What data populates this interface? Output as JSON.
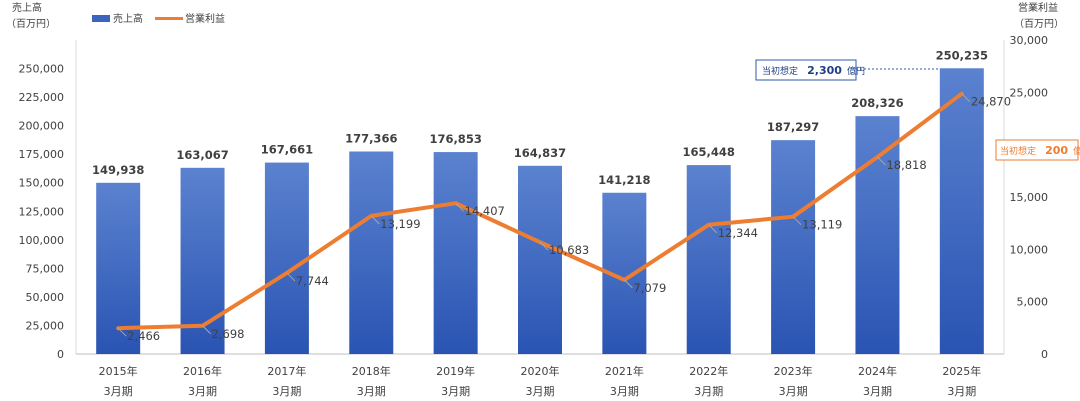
{
  "chart_data": {
    "type": "bar",
    "categories": [
      [
        "2015年",
        "3月期"
      ],
      [
        "2016年",
        "3月期"
      ],
      [
        "2017年",
        "3月期"
      ],
      [
        "2018年",
        "3月期"
      ],
      [
        "2019年",
        "3月期"
      ],
      [
        "2020年",
        "3月期"
      ],
      [
        "2021年",
        "3月期"
      ],
      [
        "2022年",
        "3月期"
      ],
      [
        "2023年",
        "3月期"
      ],
      [
        "2024年",
        "3月期"
      ],
      [
        "2025年",
        "3月期"
      ]
    ],
    "series": [
      {
        "name": "売上高",
        "type": "bar",
        "axis": "left",
        "values": [
          149938,
          163067,
          167661,
          177366,
          176853,
          164837,
          141218,
          165448,
          187297,
          208326,
          250235
        ],
        "labels": [
          "149,938",
          "163,067",
          "167,661",
          "177,366",
          "176,853",
          "164,837",
          "141,218",
          "165,448",
          "187,297",
          "208,326",
          "250,235"
        ]
      },
      {
        "name": "営業利益",
        "type": "line",
        "axis": "right",
        "values": [
          2466,
          2698,
          7744,
          13199,
          14407,
          10683,
          7079,
          12344,
          13119,
          18818,
          24870
        ],
        "labels": [
          "2,466",
          "2,698",
          "7,744",
          "13,199",
          "14,407",
          "10,683",
          "7,079",
          "12,344",
          "13,119",
          "18,818",
          "24,870"
        ]
      }
    ],
    "left_axis": {
      "title_line1": "売上高",
      "title_line2": "（百万円）",
      "min": 0,
      "max": 275000,
      "ticks": [
        0,
        25000,
        50000,
        75000,
        100000,
        125000,
        150000,
        175000,
        200000,
        225000,
        250000
      ],
      "tick_labels": [
        "0",
        "25,000",
        "50,000",
        "75,000",
        "100,000",
        "125,000",
        "150,000",
        "175,000",
        "200,000",
        "225,000",
        "250,000"
      ]
    },
    "right_axis": {
      "title_line1": "営業利益",
      "title_line2": "（百万円）",
      "min": 0,
      "max": 30000,
      "ticks": [
        0,
        5000,
        10000,
        15000,
        20000,
        25000,
        30000
      ],
      "tick_labels": [
        "0",
        "5,000",
        "10,000",
        "15,000",
        "20,000",
        "25,000",
        "30,000"
      ]
    },
    "annotations": [
      {
        "text": "当初想定",
        "value": "2,300",
        "unit": "億円",
        "target_series": "売上高",
        "color": "#2E5AAC"
      },
      {
        "text": "当初想定",
        "value": "200",
        "unit": "億円",
        "target_series": "営業利益",
        "color": "#ED7D31"
      }
    ],
    "legend_position": "top-left",
    "grid": false,
    "colors": {
      "bar_top": "#5B82CF",
      "bar_bottom": "#2A54B3",
      "line": "#ED7D31",
      "leader": "#A6A6A6"
    }
  }
}
